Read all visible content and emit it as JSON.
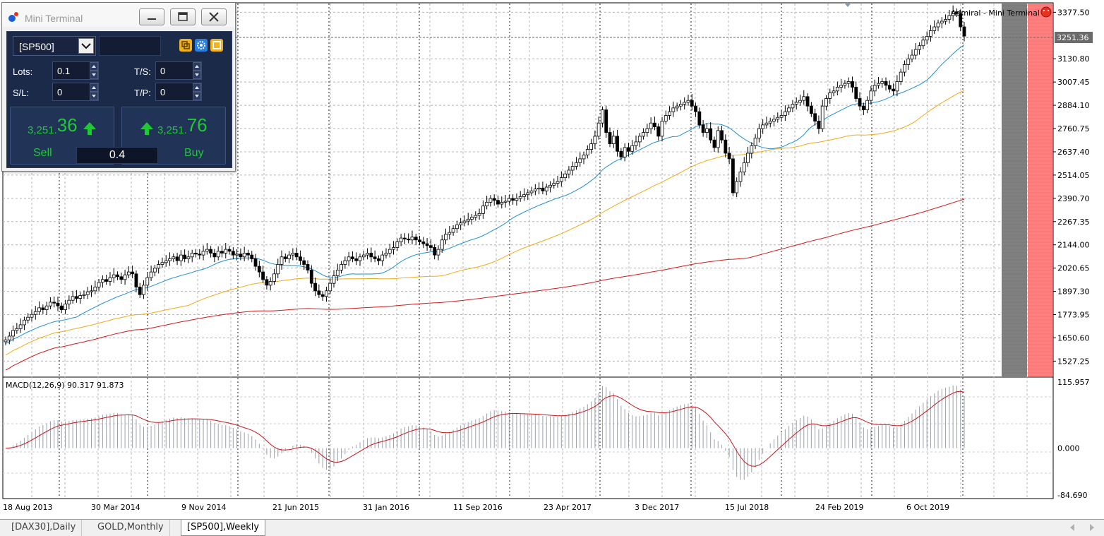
{
  "window": {
    "title": "Mini Terminal",
    "chart_label": "Admiral - Mini Terminal"
  },
  "mini_terminal": {
    "symbol": "[SP500]",
    "lots_label": "Lots:",
    "lots_value": "0.1",
    "ts_label": "T/S:",
    "ts_value": "0",
    "sl_label": "S/L:",
    "sl_value": "0",
    "tp_label": "T/P:",
    "tp_value": "0",
    "sell_price_small": "3,251.",
    "sell_price_big": "36",
    "buy_price_small": "3,251.",
    "buy_price_big": "76",
    "sell_label": "Sell",
    "buy_label": "Buy",
    "lot_display": "0.4"
  },
  "price_axis": {
    "ticks": [
      "3377.50",
      "3130.80",
      "3007.45",
      "2884.10",
      "2760.75",
      "2637.40",
      "2514.05",
      "2390.70",
      "2267.35",
      "2144.00",
      "2020.65",
      "1897.30",
      "1773.95",
      "1650.60",
      "1527.25"
    ],
    "current_price": "3251.36"
  },
  "macd_axis": {
    "label": "MACD(12,26,9) 90.317 91.873",
    "ticks": [
      "115.957",
      "0.000",
      "-84.690"
    ]
  },
  "time_axis": {
    "ticks": [
      "18 Aug 2013",
      "30 Mar 2014",
      "9 Nov 2014",
      "21 Jun 2015",
      "31 Jan 2016",
      "11 Sep 2016",
      "23 Apr 2017",
      "3 Dec 2017",
      "15 Jul 2018",
      "24 Feb 2019",
      "6 Oct 2019"
    ]
  },
  "tabs": [
    {
      "label": "[DAX30],Daily",
      "active": false
    },
    {
      "label": "GOLD,Monthly",
      "active": false
    },
    {
      "label": "[SP500],Weekly",
      "active": true
    }
  ],
  "colors": {
    "accent_green": "#1fc934",
    "ma_fast": "#1f8fd6",
    "ma_mid": "#f2a91a",
    "ma_slow": "#d41a1a",
    "macd_signal": "#c8151b",
    "bid_zone": "#808080",
    "ask_zone": "#ff7f7f",
    "terminal_bg": "#1c2a4a"
  },
  "chart_data": {
    "type": "candlestick",
    "symbol": "[SP500]",
    "timeframe": "Weekly",
    "ylim": [
      1450,
      3420
    ],
    "close": [
      1640,
      1660,
      1690,
      1700,
      1720,
      1745,
      1760,
      1775,
      1790,
      1810,
      1800,
      1820,
      1840,
      1835,
      1820,
      1800,
      1830,
      1850,
      1870,
      1860,
      1875,
      1880,
      1895,
      1900,
      1920,
      1945,
      1960,
      1950,
      1970,
      1985,
      1975,
      1960,
      1985,
      2000,
      1990,
      1920,
      1880,
      1930,
      1970,
      2000,
      2020,
      2040,
      2050,
      2060,
      2070,
      2080,
      2060,
      2090,
      2070,
      2080,
      2100,
      2095,
      2090,
      2110,
      2120,
      2100,
      2080,
      2110,
      2100,
      2120,
      2110,
      2090,
      2095,
      2080,
      2100,
      2090,
      2070,
      2030,
      2000,
      1960,
      1930,
      1950,
      1990,
      2040,
      2080,
      2070,
      2090,
      2100,
      2080,
      2060,
      2040,
      2010,
      1940,
      1900,
      1880,
      1870,
      1900,
      1940,
      1980,
      2010,
      2040,
      2060,
      2080,
      2070,
      2060,
      2080,
      2090,
      2100,
      2080,
      2070,
      2060,
      2090,
      2100,
      2120,
      2130,
      2160,
      2180,
      2175,
      2170,
      2185,
      2170,
      2160,
      2150,
      2140,
      2130,
      2090,
      2120,
      2170,
      2200,
      2210,
      2230,
      2250,
      2260,
      2270,
      2280,
      2290,
      2300,
      2310,
      2350,
      2370,
      2390,
      2380,
      2360,
      2370,
      2375,
      2390,
      2380,
      2390,
      2400,
      2410,
      2420,
      2430,
      2440,
      2445,
      2430,
      2450,
      2460,
      2470,
      2480,
      2500,
      2520,
      2540,
      2560,
      2580,
      2600,
      2620,
      2650,
      2680,
      2720,
      2790,
      2860,
      2740,
      2680,
      2720,
      2640,
      2610,
      2660,
      2640,
      2670,
      2690,
      2720,
      2740,
      2760,
      2790,
      2770,
      2720,
      2800,
      2830,
      2850,
      2870,
      2880,
      2890,
      2900,
      2910,
      2880,
      2850,
      2780,
      2740,
      2760,
      2700,
      2660,
      2750,
      2700,
      2630,
      2600,
      2420,
      2480,
      2530,
      2580,
      2630,
      2670,
      2710,
      2760,
      2780,
      2790,
      2800,
      2810,
      2820,
      2830,
      2850,
      2870,
      2890,
      2900,
      2910,
      2930,
      2880,
      2840,
      2800,
      2760,
      2880,
      2920,
      2950,
      2960,
      2980,
      2990,
      3000,
      3010,
      2980,
      2920,
      2880,
      2860,
      2910,
      2960,
      2990,
      3000,
      3010,
      2990,
      2970,
      2960,
      3010,
      3060,
      3100,
      3130,
      3150,
      3180,
      3200,
      3230,
      3250,
      3280,
      3300,
      3320,
      3330,
      3340,
      3360,
      3380,
      3370,
      3300,
      3251
    ]
  }
}
